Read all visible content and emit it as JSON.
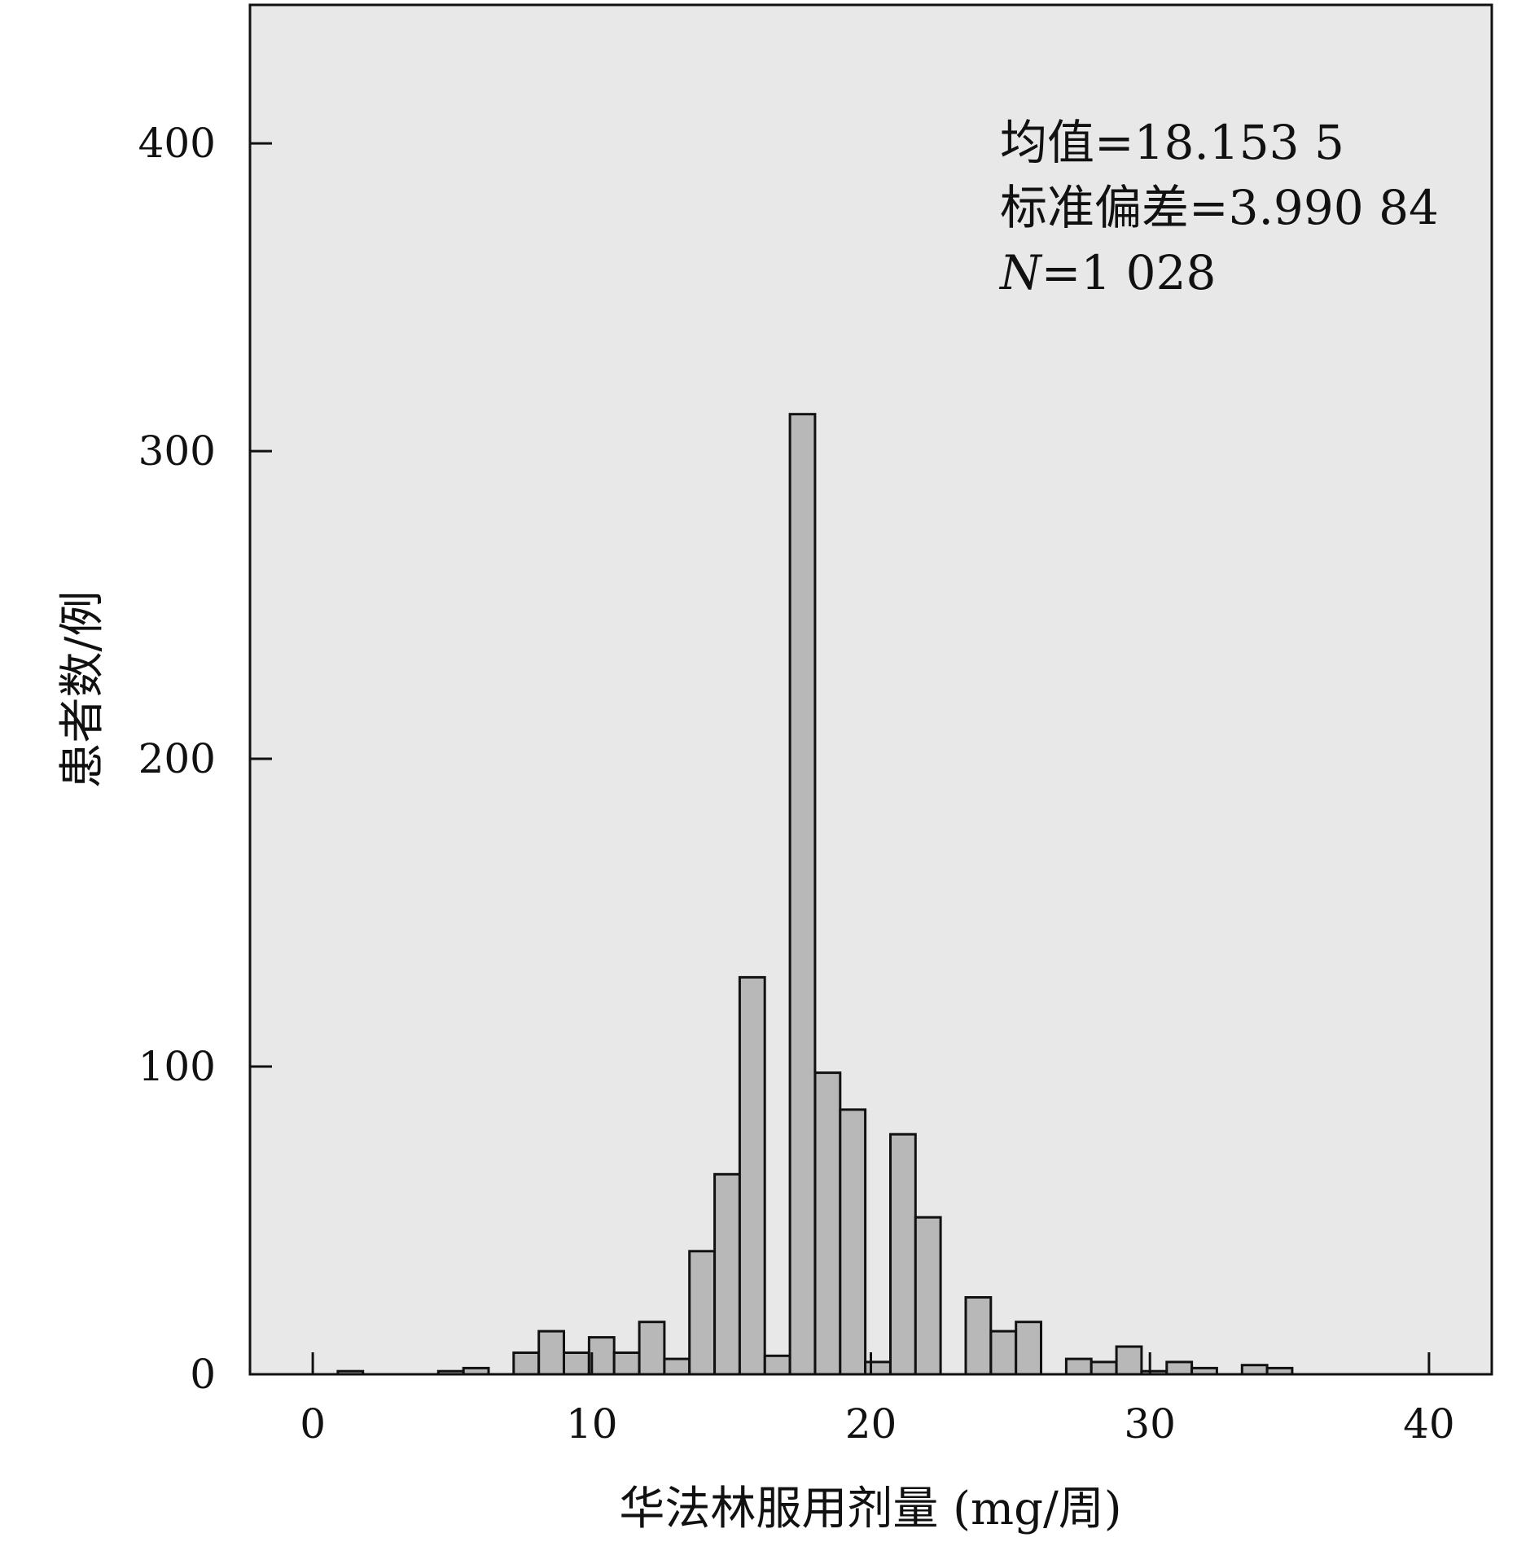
{
  "chart_data": {
    "type": "bar",
    "xlabel": "华法林服用剂量 (mg/周)",
    "ylabel": "患者数/例",
    "xlim": [
      -2.25,
      42.25
    ],
    "ylim": [
      0,
      445
    ],
    "xticks": [
      0,
      10,
      20,
      30,
      40
    ],
    "yticks": [
      0,
      100,
      200,
      300,
      400
    ],
    "x_tick_labels": [
      "0",
      "10",
      "20",
      "30",
      "40"
    ],
    "y_tick_labels": [
      "0",
      "100",
      "200",
      "300",
      "400"
    ],
    "bin_width": 0.9,
    "grid": false,
    "colors": {
      "plot_background": "#e8e8e8",
      "bar_fill": "#b8b8b8",
      "bar_stroke": "#111111"
    },
    "stats": {
      "mean_label": "均值=18.153 5",
      "sd_label": "标准偏差=3.990 84",
      "n_prefix": "N",
      "n_suffix": "=1 028"
    },
    "bars": [
      {
        "x": 1.35,
        "value": 1
      },
      {
        "x": 4.95,
        "value": 1
      },
      {
        "x": 5.85,
        "value": 2
      },
      {
        "x": 7.65,
        "value": 7
      },
      {
        "x": 8.55,
        "value": 14
      },
      {
        "x": 9.45,
        "value": 7
      },
      {
        "x": 10.35,
        "value": 12
      },
      {
        "x": 11.25,
        "value": 7
      },
      {
        "x": 12.15,
        "value": 17
      },
      {
        "x": 13.05,
        "value": 5
      },
      {
        "x": 13.95,
        "value": 40
      },
      {
        "x": 14.85,
        "value": 65
      },
      {
        "x": 15.75,
        "value": 129
      },
      {
        "x": 16.65,
        "value": 6
      },
      {
        "x": 17.55,
        "value": 312
      },
      {
        "x": 18.45,
        "value": 98
      },
      {
        "x": 19.35,
        "value": 86
      },
      {
        "x": 20.25,
        "value": 4
      },
      {
        "x": 21.15,
        "value": 78
      },
      {
        "x": 22.05,
        "value": 51
      },
      {
        "x": 23.85,
        "value": 25
      },
      {
        "x": 24.75,
        "value": 14
      },
      {
        "x": 25.65,
        "value": 17
      },
      {
        "x": 27.45,
        "value": 5
      },
      {
        "x": 28.35,
        "value": 4
      },
      {
        "x": 29.25,
        "value": 9
      },
      {
        "x": 30.15,
        "value": 1
      },
      {
        "x": 31.05,
        "value": 4
      },
      {
        "x": 31.95,
        "value": 2
      },
      {
        "x": 33.75,
        "value": 3
      },
      {
        "x": 34.65,
        "value": 2
      }
    ]
  }
}
